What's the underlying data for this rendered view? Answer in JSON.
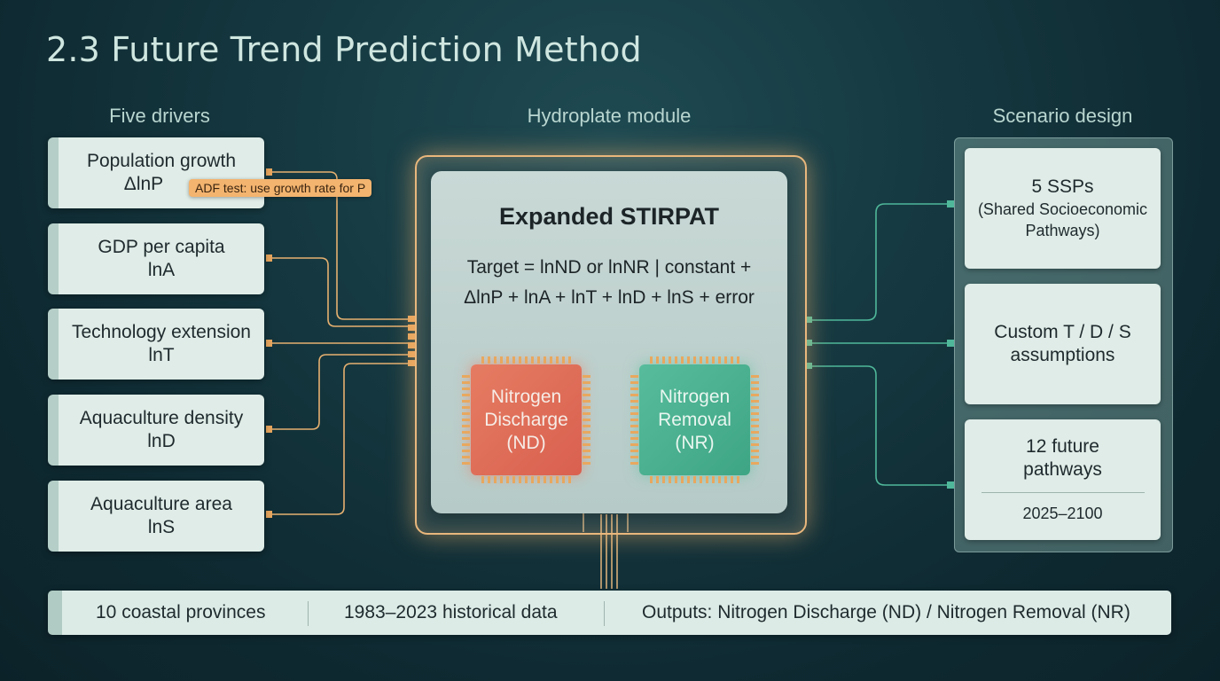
{
  "title": "2.3 Future Trend Prediction Method",
  "columns": {
    "left": "Five drivers",
    "center": "Hydroplate module",
    "right": "Scenario design"
  },
  "drivers": [
    {
      "label": "Population growth",
      "var": "ΔlnP"
    },
    {
      "label": "GDP per capita",
      "var": "lnA"
    },
    {
      "label": "Technology extension",
      "var": "lnT"
    },
    {
      "label": "Aquaculture density",
      "var": "lnD"
    },
    {
      "label": "Aquaculture area",
      "var": "lnS"
    }
  ],
  "tooltip": "ADF test: use growth rate for P",
  "module": {
    "heading": "Expanded STIRPAT",
    "formula_line1": "Target = lnND or lnNR | constant +",
    "formula_line2": "ΔlnP + lnA + lnT + lnD + lnS + error",
    "chips": [
      {
        "line1": "Nitrogen",
        "line2": "Discharge",
        "line3": "(ND)",
        "color": "#de6b57"
      },
      {
        "line1": "Nitrogen",
        "line2": "Removal",
        "line3": "(NR)",
        "color": "#48b08f"
      }
    ]
  },
  "scenarios": [
    {
      "main": "5 SSPs",
      "sub": "(Shared Socioeconomic Pathways)"
    },
    {
      "main": "Custom T / D / S assumptions"
    },
    {
      "main": "12 future pathways",
      "years": "2025–2100"
    }
  ],
  "footer": {
    "provinces": "10 coastal provinces",
    "data": "1983–2023 historical data",
    "outputs": "Outputs: Nitrogen Discharge (ND) / Nitrogen Removal (NR)"
  },
  "colors": {
    "accent_orange": "#e9b77c",
    "connector_teal": "#4fb89a",
    "background": "#123039"
  }
}
